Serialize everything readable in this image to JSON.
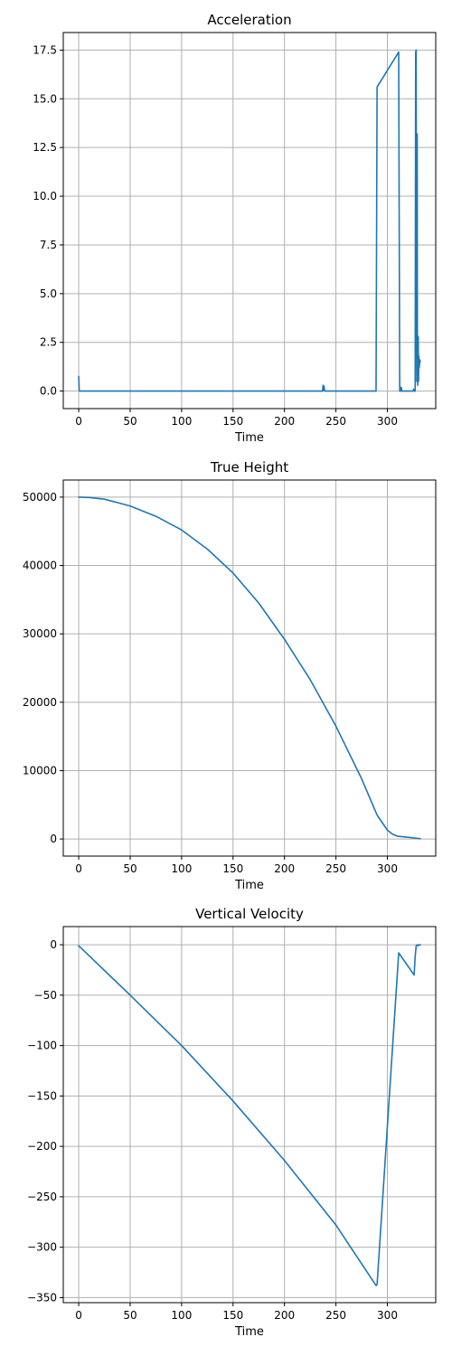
{
  "chart_data": [
    {
      "type": "line",
      "title": "Acceleration",
      "xlabel": "Time",
      "ylabel": "",
      "xlim": [
        -15,
        347
      ],
      "ylim": [
        -0.9,
        18.4
      ],
      "xticks": [
        0,
        50,
        100,
        150,
        200,
        250,
        300
      ],
      "yticks": [
        0.0,
        2.5,
        5.0,
        7.5,
        10.0,
        12.5,
        15.0,
        17.5
      ],
      "ytick_labels": [
        "0.0",
        "2.5",
        "5.0",
        "7.5",
        "10.0",
        "12.5",
        "15.0",
        "17.5"
      ],
      "grid": true,
      "color": "#1f77b4",
      "series": [
        {
          "x": [
            0,
            0.5,
            1,
            50,
            100,
            150,
            200,
            237,
            237.5,
            238,
            238.5,
            239,
            250,
            288,
            289,
            290,
            311,
            312,
            313,
            313.5,
            314,
            325,
            325.5,
            326,
            327,
            327.5,
            328,
            328.3,
            328.6,
            329,
            329.2,
            329.5,
            330,
            330.3,
            330.6,
            331,
            331.5,
            332
          ],
          "y": [
            0.75,
            0.05,
            0,
            0,
            0,
            0,
            0,
            0,
            0.3,
            0.05,
            0.25,
            0,
            0,
            0,
            0,
            15.6,
            17.4,
            0,
            0,
            0.2,
            0,
            0,
            0.1,
            0,
            0,
            17.4,
            17.5,
            3,
            0.5,
            13.2,
            2,
            0.3,
            2.8,
            0.5,
            1.8,
            1.2,
            1.6,
            1.5
          ]
        }
      ]
    },
    {
      "type": "line",
      "title": "True Height",
      "xlabel": "Time",
      "ylabel": "",
      "xlim": [
        -15,
        347
      ],
      "ylim": [
        -2500,
        52500
      ],
      "xticks": [
        0,
        50,
        100,
        150,
        200,
        250,
        300
      ],
      "yticks": [
        0,
        10000,
        20000,
        30000,
        40000,
        50000
      ],
      "ytick_labels": [
        "0",
        "10000",
        "20000",
        "30000",
        "40000",
        "50000"
      ],
      "grid": true,
      "color": "#1f77b4",
      "series": [
        {
          "x": [
            0,
            10,
            25,
            50,
            75,
            100,
            125,
            150,
            175,
            200,
            225,
            250,
            275,
            290,
            300,
            305,
            310,
            320,
            330,
            332
          ],
          "y": [
            50000,
            49950,
            49700,
            48700,
            47200,
            45200,
            42400,
            38900,
            34500,
            29200,
            23300,
            16500,
            8800,
            3500,
            1300,
            700,
            400,
            250,
            80,
            50
          ]
        }
      ]
    },
    {
      "type": "line",
      "title": "Vertical Velocity",
      "xlabel": "Time",
      "ylabel": "",
      "xlim": [
        -15,
        347
      ],
      "ylim": [
        -355,
        18
      ],
      "xticks": [
        0,
        50,
        100,
        150,
        200,
        250,
        300
      ],
      "yticks": [
        0,
        -50,
        -100,
        -150,
        -200,
        -250,
        -300,
        -350
      ],
      "ytick_labels": [
        "0",
        "−50",
        "−100",
        "−150",
        "−200",
        "−250",
        "−300",
        "−350"
      ],
      "grid": true,
      "color": "#1f77b4",
      "series": [
        {
          "x": [
            0,
            50,
            100,
            150,
            200,
            250,
            289,
            290,
            311,
            326,
            327,
            328,
            329,
            330,
            331,
            332
          ],
          "y": [
            -1,
            -50,
            -100,
            -155,
            -214,
            -278,
            -338,
            -337,
            -8,
            -30,
            -12,
            -1,
            0,
            -1,
            0,
            0
          ]
        }
      ]
    }
  ]
}
